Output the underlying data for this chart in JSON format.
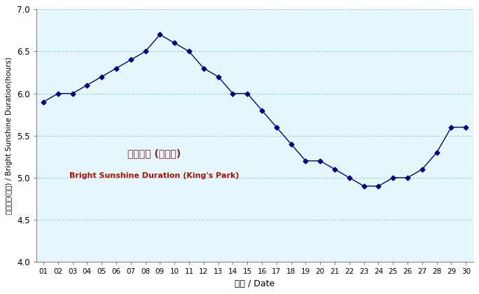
{
  "days": [
    1,
    2,
    3,
    4,
    5,
    6,
    7,
    8,
    9,
    10,
    11,
    12,
    13,
    14,
    15,
    16,
    17,
    18,
    19,
    20,
    21,
    22,
    23,
    24,
    25,
    26,
    27,
    28,
    29,
    30
  ],
  "values": [
    5.9,
    6.0,
    6.0,
    6.1,
    6.2,
    6.3,
    6.4,
    6.5,
    6.7,
    6.6,
    6.5,
    6.3,
    6.2,
    6.0,
    6.0,
    5.8,
    5.6,
    5.4,
    5.2,
    5.2,
    5.1,
    5.0,
    4.9,
    4.9,
    5.0,
    5.0,
    5.1,
    5.3,
    5.6,
    5.6
  ],
  "x_tick_labels": [
    "01",
    "02",
    "03",
    "04",
    "05",
    "06",
    "07",
    "08",
    "09",
    "10",
    "11",
    "12",
    "13",
    "14",
    "15",
    "16",
    "17",
    "18",
    "19",
    "20",
    "21",
    "22",
    "23",
    "24",
    "25",
    "26",
    "27",
    "28",
    "29",
    "30"
  ],
  "y_ticks": [
    4.0,
    4.5,
    5.0,
    5.5,
    6.0,
    6.5,
    7.0
  ],
  "ylim": [
    4.0,
    7.0
  ],
  "xlabel_zh": "日期",
  "xlabel_en": "Date",
  "ylabel_zh": "平均日照(小時)",
  "ylabel_en": "Bright Sunshine Duration(hours)",
  "legend_zh": "平均日照 (京士柏)",
  "legend_en": "Bright Sunshine Duration (King's Park)",
  "line_color": "#00008B",
  "marker": "D",
  "marker_size": 3.5,
  "background_color": "#E5F7FC",
  "grid_color": "#A8CDD8",
  "legend_zh_color": "#8B1A1A",
  "legend_en_color": "#AA1100"
}
